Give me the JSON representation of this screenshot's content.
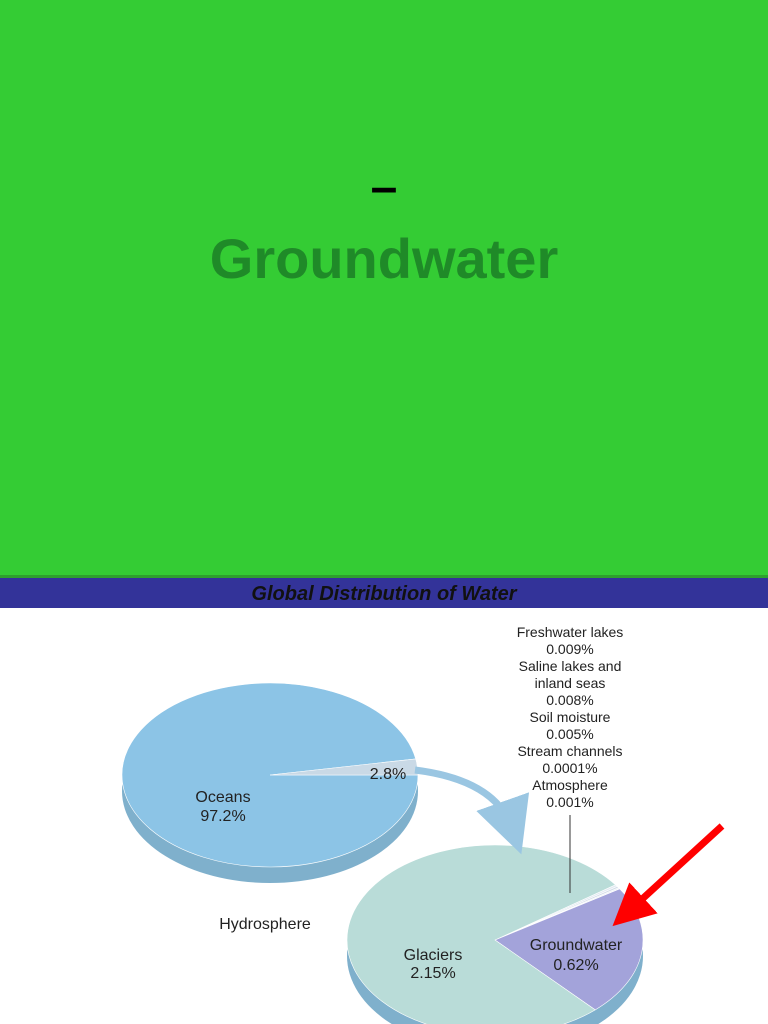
{
  "slide": {
    "dash": "–",
    "title": "Groundwater"
  },
  "chart_data": [
    {
      "type": "pie",
      "title": "Global Distribution of Water",
      "label": "Hydrosphere",
      "categories": [
        "Oceans",
        null
      ],
      "values": [
        97.2,
        2.8
      ],
      "value_labels": [
        "97.2%",
        "2.8%"
      ],
      "colors": [
        "#8cc4e6",
        "#c9d9e6"
      ]
    },
    {
      "type": "pie",
      "categories": [
        "Glaciers",
        "Groundwater",
        "Freshwater lakes",
        "Saline lakes and inland seas",
        "Soil moisture",
        "Stream channels",
        "Atmosphere"
      ],
      "values": [
        2.15,
        0.62,
        0.009,
        0.008,
        0.005,
        0.0001,
        0.001
      ],
      "value_labels": [
        "2.15%",
        "0.62%",
        "0.009%",
        "0.008%",
        "0.005%",
        "0.0001%",
        "0.001%"
      ],
      "colors": [
        "#b9dcd8",
        "#a3a3da",
        "#e2eaf2",
        "#d4dde8",
        "#e2eaf2",
        "#d4dde8",
        "#e2eaf2"
      ]
    }
  ]
}
